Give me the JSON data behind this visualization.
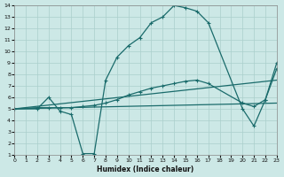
{
  "xlabel": "Humidex (Indice chaleur)",
  "bg_color": "#cce8e6",
  "grid_color": "#aacfcc",
  "line_color": "#1a6b6b",
  "xlim": [
    0,
    23
  ],
  "ylim": [
    1,
    14
  ],
  "xticks": [
    0,
    1,
    2,
    3,
    4,
    5,
    6,
    7,
    8,
    9,
    10,
    11,
    12,
    13,
    14,
    15,
    16,
    17,
    18,
    19,
    20,
    21,
    22,
    23
  ],
  "yticks": [
    1,
    2,
    3,
    4,
    5,
    6,
    7,
    8,
    9,
    10,
    11,
    12,
    13,
    14
  ],
  "line1_x": [
    0,
    2,
    3,
    4,
    5,
    6,
    7,
    8,
    9,
    10,
    11,
    12,
    13,
    14,
    15,
    16,
    17,
    20,
    21,
    22,
    23
  ],
  "line1_y": [
    5.0,
    5.0,
    6.0,
    4.8,
    4.5,
    1.1,
    1.1,
    7.5,
    9.5,
    10.5,
    11.2,
    12.5,
    13.0,
    14.0,
    13.8,
    13.5,
    12.5,
    5.0,
    3.5,
    5.8,
    9.0
  ],
  "line2_x": [
    0,
    2,
    3,
    4,
    5,
    6,
    7,
    8,
    9,
    10,
    11,
    12,
    13,
    14,
    15,
    16,
    17,
    20,
    21,
    22,
    23
  ],
  "line2_y": [
    5.0,
    5.1,
    5.1,
    5.1,
    5.1,
    5.2,
    5.3,
    5.5,
    5.8,
    6.2,
    6.5,
    6.8,
    7.0,
    7.2,
    7.4,
    7.5,
    7.2,
    5.5,
    5.2,
    5.8,
    8.5
  ],
  "line3_x": [
    0,
    23
  ],
  "line3_y": [
    5.0,
    7.5
  ],
  "line4_x": [
    0,
    23
  ],
  "line4_y": [
    5.0,
    5.5
  ]
}
